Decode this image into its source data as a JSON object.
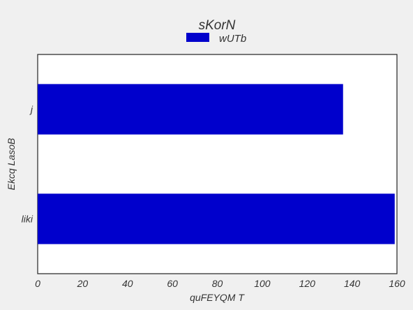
{
  "chart_data": {
    "type": "bar",
    "orientation": "horizontal",
    "title": "sKorN",
    "xlabel": "quFEYQM T",
    "ylabel": "Ekcq LasoB",
    "categories": [
      "j",
      "liki"
    ],
    "series": [
      {
        "name": "wUTb",
        "values": [
          136,
          159
        ],
        "color": "#0000cc"
      }
    ],
    "xlim": [
      0,
      160
    ],
    "xticks": [
      0,
      20,
      40,
      60,
      80,
      100,
      120,
      140,
      160
    ],
    "grid": false,
    "legend_position": "top-center"
  }
}
